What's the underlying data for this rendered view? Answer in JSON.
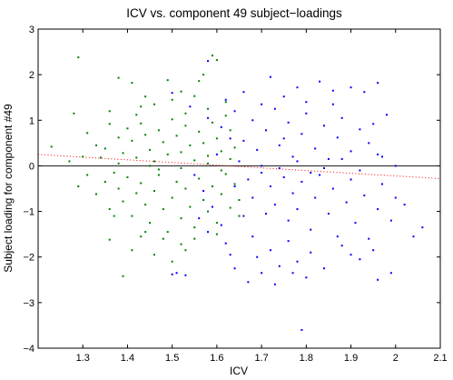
{
  "chart_data": {
    "type": "scatter",
    "title": "ICV vs. component 49 subject−loadings",
    "xlabel": "ICV",
    "ylabel": "Subject loading for component #49",
    "xlim": [
      1.2,
      2.1
    ],
    "ylim": [
      -4,
      3
    ],
    "xticks": [
      1.3,
      1.4,
      1.5,
      1.6,
      1.7,
      1.8,
      1.9,
      2,
      2.1
    ],
    "yticks": [
      -4,
      -3,
      -2,
      -1,
      0,
      1,
      2,
      3
    ],
    "xtick_labels": [
      "1.3",
      "1.4",
      "1.5",
      "1.6",
      "1.7",
      "1.8",
      "1.9",
      "2",
      "2.1"
    ],
    "ytick_labels": [
      "−4",
      "−3",
      "−2",
      "−1",
      "0",
      "1",
      "2",
      "3"
    ],
    "grid": false,
    "legend": "none",
    "colors": {
      "series_a": "#007f00",
      "series_b": "#0000ff",
      "fit": "#ff0000",
      "zero_line": "#000000"
    },
    "reference_line": {
      "y": 0
    },
    "trend_line": {
      "style": "dotted",
      "x": [
        1.2,
        2.1
      ],
      "y": [
        0.25,
        -0.28
      ]
    },
    "series": [
      {
        "color": "#007f00",
        "points": [
          [
            1.29,
            2.38
          ],
          [
            1.36,
            1.2
          ],
          [
            1.38,
            1.93
          ],
          [
            1.41,
            1.82
          ],
          [
            1.43,
            1.3
          ],
          [
            1.44,
            1.52
          ],
          [
            1.46,
            1.35
          ],
          [
            1.49,
            1.88
          ],
          [
            1.52,
            1.63
          ],
          [
            1.55,
            1.53
          ],
          [
            1.57,
            2.0
          ],
          [
            1.59,
            2.42
          ],
          [
            1.6,
            2.32
          ],
          [
            1.56,
            1.86
          ],
          [
            1.53,
            1.15
          ],
          [
            1.62,
            1.4
          ],
          [
            1.28,
            1.15
          ],
          [
            1.31,
            0.72
          ],
          [
            1.33,
            0.45
          ],
          [
            1.35,
            0.38
          ],
          [
            1.36,
            0.92
          ],
          [
            1.38,
            0.62
          ],
          [
            1.39,
            0.28
          ],
          [
            1.4,
            0.82
          ],
          [
            1.41,
            0.55
          ],
          [
            1.42,
            0.18
          ],
          [
            1.43,
            0.93
          ],
          [
            1.44,
            0.68
          ],
          [
            1.45,
            0.35
          ],
          [
            1.46,
            0.1
          ],
          [
            1.47,
            0.78
          ],
          [
            1.48,
            0.52
          ],
          [
            1.49,
            0.25
          ],
          [
            1.5,
            1.02
          ],
          [
            1.51,
            0.66
          ],
          [
            1.52,
            0.3
          ],
          [
            1.53,
            0.88
          ],
          [
            1.54,
            0.45
          ],
          [
            1.55,
            0.12
          ],
          [
            1.56,
            0.75
          ],
          [
            1.57,
            0.5
          ],
          [
            1.58,
            0.22
          ],
          [
            1.59,
            0.95
          ],
          [
            1.6,
            0.6
          ],
          [
            1.61,
            0.32
          ],
          [
            1.62,
            1.1
          ],
          [
            1.63,
            0.78
          ],
          [
            1.64,
            0.4
          ],
          [
            1.23,
            0.42
          ],
          [
            1.27,
            0.1
          ],
          [
            1.29,
            -0.45
          ],
          [
            1.31,
            -0.2
          ],
          [
            1.33,
            -0.62
          ],
          [
            1.35,
            -0.35
          ],
          [
            1.36,
            -0.95
          ],
          [
            1.37,
            -0.15
          ],
          [
            1.38,
            -0.5
          ],
          [
            1.39,
            -0.78
          ],
          [
            1.4,
            -0.25
          ],
          [
            1.41,
            -1.1
          ],
          [
            1.42,
            -0.6
          ],
          [
            1.43,
            -0.38
          ],
          [
            1.44,
            -0.85
          ],
          [
            1.45,
            -1.25
          ],
          [
            1.46,
            -0.55
          ],
          [
            1.47,
            -0.2
          ],
          [
            1.48,
            -0.95
          ],
          [
            1.49,
            -1.45
          ],
          [
            1.5,
            -0.7
          ],
          [
            1.51,
            -0.35
          ],
          [
            1.52,
            -1.15
          ],
          [
            1.53,
            -0.5
          ],
          [
            1.54,
            -0.9
          ],
          [
            1.55,
            -1.35
          ],
          [
            1.56,
            -0.28
          ],
          [
            1.57,
            -0.75
          ],
          [
            1.58,
            -1.0
          ],
          [
            1.59,
            -0.45
          ],
          [
            1.6,
            -1.25
          ],
          [
            1.61,
            -0.62
          ],
          [
            1.62,
            -0.18
          ],
          [
            1.63,
            -0.92
          ],
          [
            1.64,
            -0.4
          ],
          [
            1.65,
            -0.75
          ],
          [
            1.36,
            -1.62
          ],
          [
            1.39,
            -2.42
          ],
          [
            1.41,
            -1.85
          ],
          [
            1.43,
            -1.55
          ],
          [
            1.46,
            -1.95
          ],
          [
            1.48,
            -1.6
          ],
          [
            1.5,
            -2.1
          ],
          [
            1.52,
            -1.72
          ],
          [
            1.55,
            -1.6
          ],
          [
            1.38,
            0.05
          ],
          [
            1.45,
            0.0
          ],
          [
            1.52,
            -0.05
          ],
          [
            1.58,
            0.05
          ],
          [
            1.34,
            0.18
          ],
          [
            1.47,
            -0.08
          ],
          [
            1.61,
            -0.1
          ],
          [
            1.42,
            1.12
          ],
          [
            1.5,
            1.45
          ],
          [
            1.58,
            1.25
          ],
          [
            1.44,
            -1.45
          ],
          [
            1.53,
            -1.85
          ],
          [
            1.6,
            -1.5
          ],
          [
            1.37,
            -1.1
          ],
          [
            1.63,
            0.15
          ],
          [
            1.3,
            0.2
          ],
          [
            1.65,
            -1.1
          ]
        ]
      },
      {
        "color": "#0000ff",
        "points": [
          [
            1.58,
            2.3
          ],
          [
            1.62,
            1.45
          ],
          [
            1.66,
            1.62
          ],
          [
            1.7,
            1.35
          ],
          [
            1.72,
            1.95
          ],
          [
            1.75,
            1.52
          ],
          [
            1.78,
            1.72
          ],
          [
            1.8,
            1.4
          ],
          [
            1.83,
            1.85
          ],
          [
            1.86,
            1.65
          ],
          [
            1.9,
            1.72
          ],
          [
            1.93,
            1.62
          ],
          [
            1.96,
            1.82
          ],
          [
            1.5,
            1.6
          ],
          [
            1.54,
            1.3
          ],
          [
            1.58,
            1.05
          ],
          [
            1.61,
            0.85
          ],
          [
            1.64,
            1.2
          ],
          [
            1.66,
            0.55
          ],
          [
            1.68,
            1.0
          ],
          [
            1.69,
            0.35
          ],
          [
            1.71,
            0.78
          ],
          [
            1.73,
            1.25
          ],
          [
            1.74,
            0.45
          ],
          [
            1.76,
            0.95
          ],
          [
            1.77,
            0.2
          ],
          [
            1.79,
            0.7
          ],
          [
            1.8,
            1.15
          ],
          [
            1.82,
            0.38
          ],
          [
            1.84,
            0.88
          ],
          [
            1.85,
            0.15
          ],
          [
            1.87,
            0.62
          ],
          [
            1.88,
            1.05
          ],
          [
            1.9,
            0.32
          ],
          [
            1.92,
            0.8
          ],
          [
            1.94,
            0.5
          ],
          [
            1.95,
            0.92
          ],
          [
            1.97,
            0.2
          ],
          [
            1.98,
            1.12
          ],
          [
            1.6,
            0.25
          ],
          [
            1.63,
            0.6
          ],
          [
            1.65,
            0.1
          ],
          [
            1.67,
            -0.3
          ],
          [
            1.68,
            -0.7
          ],
          [
            1.7,
            -0.15
          ],
          [
            1.71,
            -1.05
          ],
          [
            1.72,
            -0.45
          ],
          [
            1.73,
            -0.85
          ],
          [
            1.75,
            -0.25
          ],
          [
            1.76,
            -1.2
          ],
          [
            1.77,
            -0.6
          ],
          [
            1.78,
            -0.95
          ],
          [
            1.79,
            -0.35
          ],
          [
            1.81,
            -1.4
          ],
          [
            1.82,
            -0.7
          ],
          [
            1.83,
            -0.2
          ],
          [
            1.85,
            -1.05
          ],
          [
            1.86,
            -0.5
          ],
          [
            1.87,
            -1.55
          ],
          [
            1.89,
            -0.8
          ],
          [
            1.9,
            -0.3
          ],
          [
            1.91,
            -1.25
          ],
          [
            1.93,
            -0.65
          ],
          [
            1.94,
            -1.6
          ],
          [
            1.96,
            -0.95
          ],
          [
            1.97,
            -0.4
          ],
          [
            1.99,
            -1.2
          ],
          [
            2.0,
            -0.7
          ],
          [
            2.02,
            -0.85
          ],
          [
            2.04,
            -1.55
          ],
          [
            2.06,
            -1.35
          ],
          [
            1.55,
            -0.2
          ],
          [
            1.57,
            -0.55
          ],
          [
            1.59,
            -0.9
          ],
          [
            1.61,
            -1.3
          ],
          [
            1.62,
            -1.7
          ],
          [
            1.64,
            -0.45
          ],
          [
            1.66,
            -1.1
          ],
          [
            1.68,
            -1.55
          ],
          [
            1.69,
            -2.0
          ],
          [
            1.7,
            -2.35
          ],
          [
            1.72,
            -1.85
          ],
          [
            1.74,
            -2.2
          ],
          [
            1.76,
            -1.65
          ],
          [
            1.78,
            -2.1
          ],
          [
            1.8,
            -2.45
          ],
          [
            1.81,
            -1.9
          ],
          [
            1.84,
            -2.25
          ],
          [
            1.88,
            -1.75
          ],
          [
            1.92,
            -2.05
          ],
          [
            1.95,
            -1.85
          ],
          [
            1.96,
            -2.5
          ],
          [
            1.99,
            -2.35
          ],
          [
            1.67,
            -2.55
          ],
          [
            1.73,
            -2.6
          ],
          [
            1.79,
            -3.6
          ],
          [
            1.51,
            -2.35
          ],
          [
            1.53,
            -2.4
          ],
          [
            1.5,
            -2.38
          ],
          [
            1.56,
            -1.15
          ],
          [
            1.58,
            -1.45
          ],
          [
            1.63,
            -1.95
          ],
          [
            1.7,
            0.0
          ],
          [
            1.74,
            -0.05
          ],
          [
            1.78,
            0.1
          ],
          [
            1.84,
            -0.05
          ],
          [
            1.88,
            0.15
          ],
          [
            1.92,
            -0.1
          ],
          [
            1.96,
            0.25
          ],
          [
            1.86,
            1.35
          ],
          [
            1.75,
            0.6
          ],
          [
            1.81,
            -0.15
          ],
          [
            2.0,
            0.0
          ],
          [
            1.9,
            -1.95
          ],
          [
            1.64,
            -2.25
          ],
          [
            1.77,
            -2.35
          ]
        ]
      }
    ]
  }
}
